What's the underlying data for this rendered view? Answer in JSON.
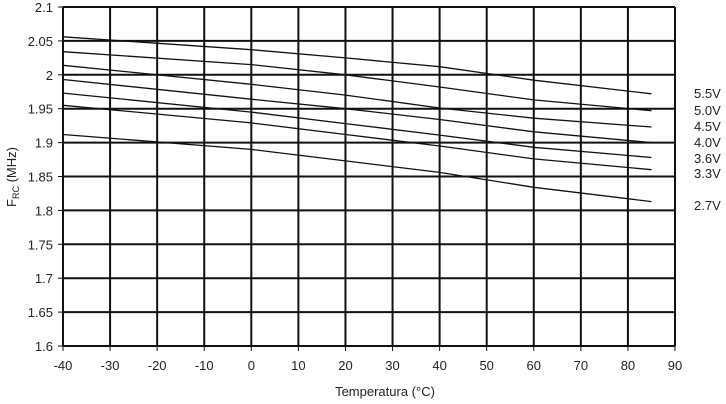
{
  "chart_data": {
    "type": "line",
    "title": "",
    "xlabel": "Temperatura (°C)",
    "ylabel_main": "F",
    "ylabel_sub": "RC",
    "ylabel_unit": " (MHz)",
    "xlim": [
      -40,
      90
    ],
    "ylim": [
      1.6,
      2.1
    ],
    "xticks": [
      -40,
      -30,
      -20,
      -10,
      0,
      10,
      20,
      30,
      40,
      50,
      60,
      70,
      80,
      90
    ],
    "xtick_labels": [
      "-40",
      "-30",
      "-20",
      "-10",
      "0",
      "10",
      "20",
      "30",
      "40",
      "50",
      "60",
      "70",
      "80",
      "90"
    ],
    "yticks": [
      1.6,
      1.65,
      1.7,
      1.75,
      1.8,
      1.85,
      1.9,
      1.95,
      2.0,
      2.05,
      2.1
    ],
    "ytick_labels": [
      "1.6",
      "1.65",
      "1.7",
      "1.75",
      "1.8",
      "1.85",
      "1.9",
      "1.95",
      "2",
      "2.05",
      "2.1"
    ],
    "grid": true,
    "legend": "right (labels at line ends)",
    "x": [
      -40,
      0,
      20,
      40,
      60,
      85
    ],
    "series": [
      {
        "name": "5.5V",
        "values": [
          2.056,
          2.037,
          2.025,
          2.012,
          1.992,
          1.972
        ]
      },
      {
        "name": "5.0V",
        "values": [
          2.034,
          2.015,
          2.0,
          1.982,
          1.963,
          1.947
        ]
      },
      {
        "name": "4.5V",
        "values": [
          2.014,
          1.986,
          1.97,
          1.951,
          1.936,
          1.923
        ]
      },
      {
        "name": "4.0V",
        "values": [
          1.993,
          1.964,
          1.95,
          1.934,
          1.916,
          1.9
        ]
      },
      {
        "name": "3.6V",
        "values": [
          1.973,
          1.945,
          1.928,
          1.911,
          1.893,
          1.878
        ]
      },
      {
        "name": "3.3V",
        "values": [
          1.955,
          1.929,
          1.912,
          1.895,
          1.876,
          1.86
        ]
      },
      {
        "name": "2.7V",
        "values": [
          1.912,
          1.89,
          1.873,
          1.856,
          1.834,
          1.813
        ]
      }
    ]
  }
}
